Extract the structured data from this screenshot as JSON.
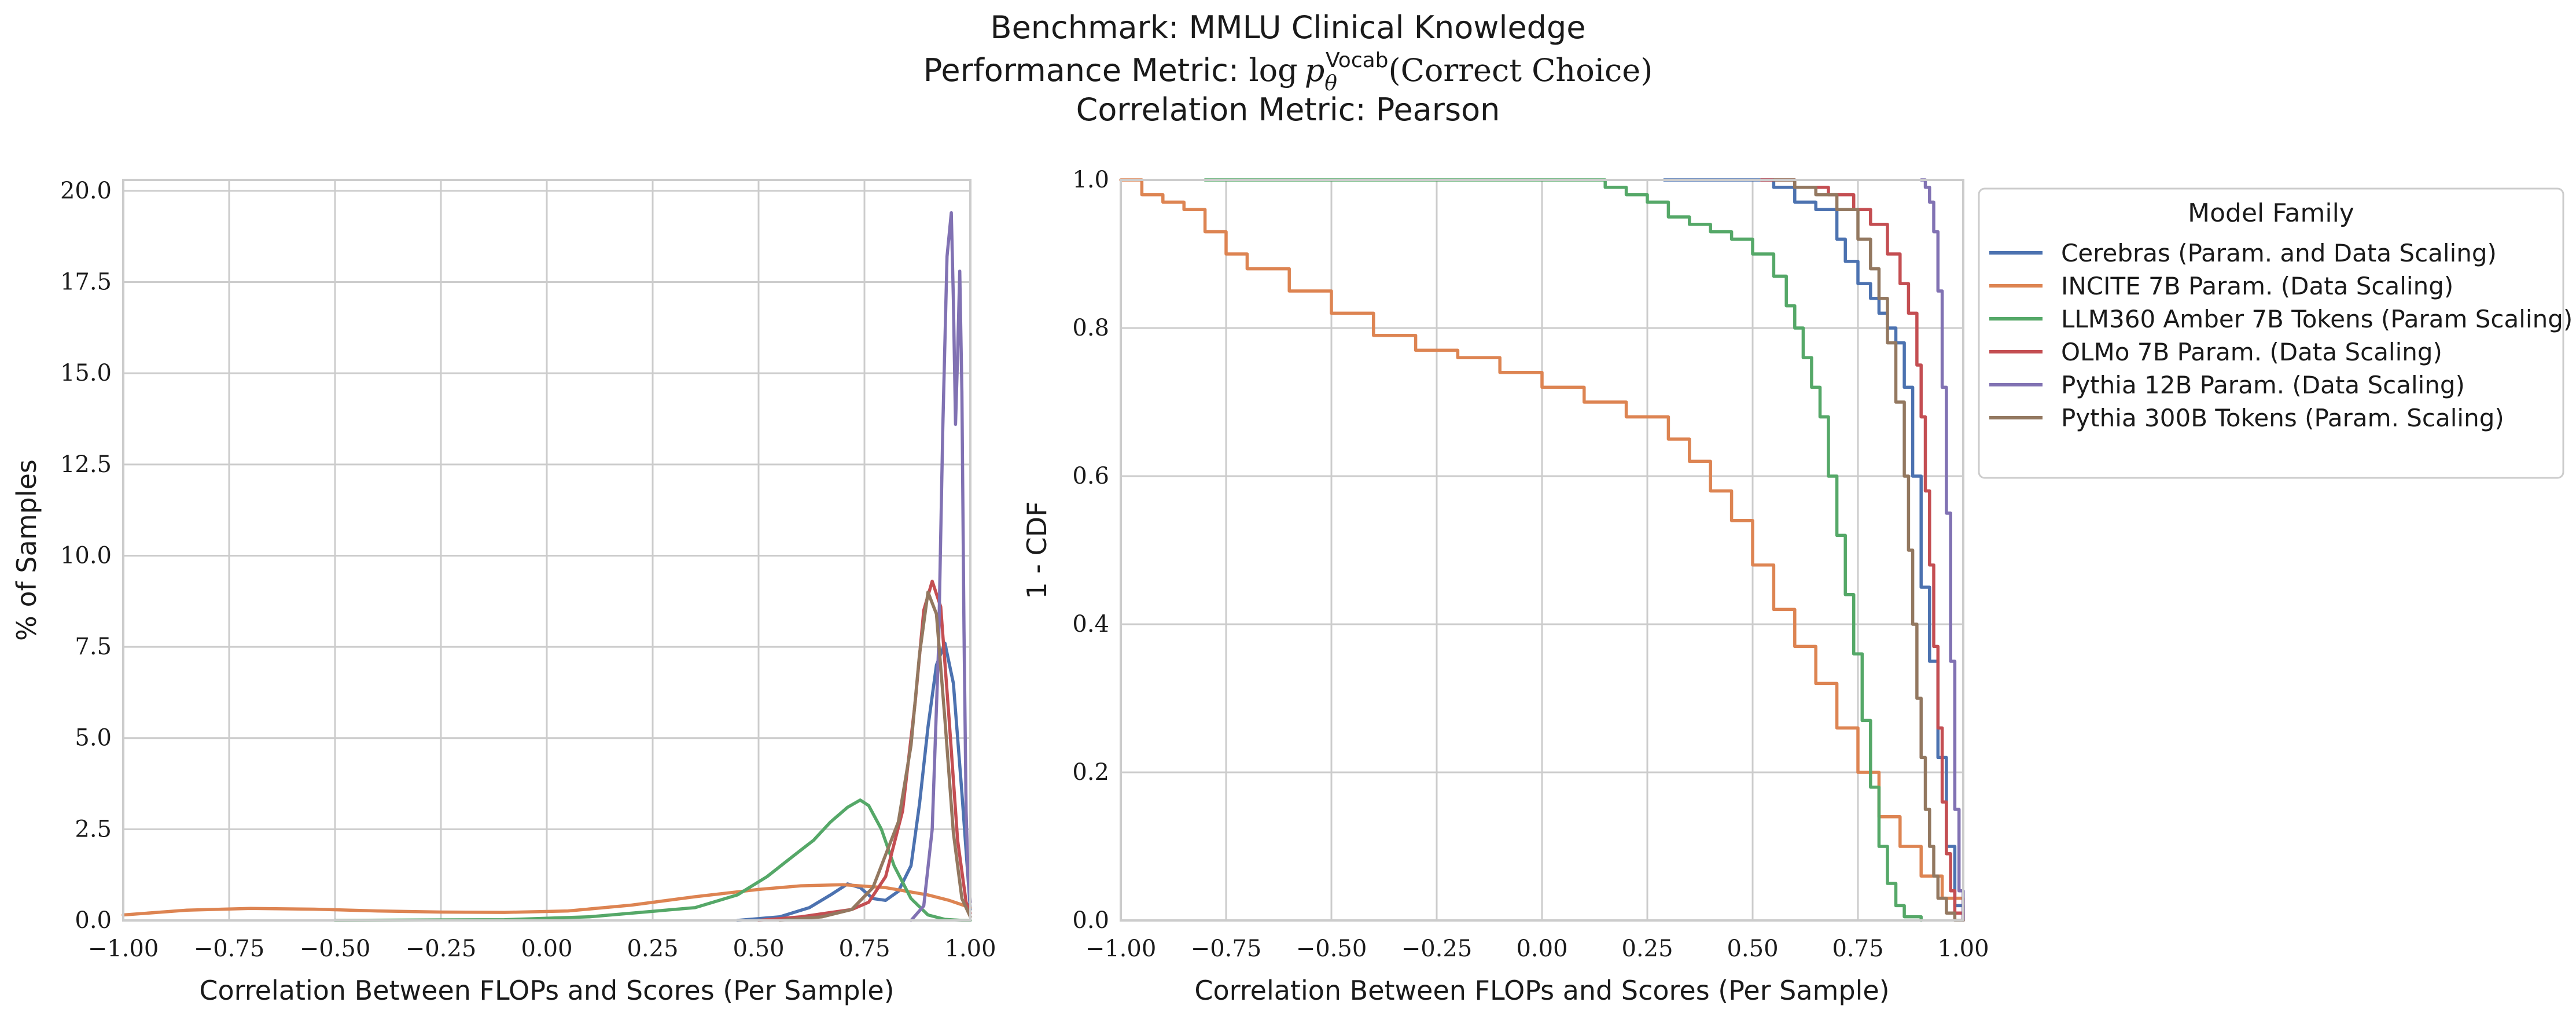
{
  "figure": {
    "title_line1": "Benchmark: MMLU Clinical Knowledge",
    "title_line2_prefix": "Performance Metric: ",
    "title_line2_log": "log",
    "title_line2_p": "p",
    "title_line2_sub": "θ",
    "title_line2_sup": "Vocab",
    "title_line2_suffix": "(Correct Choice)",
    "title_line3": "Correlation Metric: Pearson"
  },
  "legend": {
    "title": "Model Family"
  },
  "colors": {
    "Cerebras": "#4c72b0",
    "INCITE": "#dd8452",
    "LLM360": "#55a868",
    "OLMo": "#c44e52",
    "Pythia12B": "#8172b3",
    "Pythia300B": "#937860"
  },
  "chart_data": [
    {
      "type": "line",
      "name": "kde",
      "xlabel": "Correlation Between FLOPs and Scores (Per Sample)",
      "ylabel": "% of Samples",
      "xlim": [
        -1.0,
        1.0
      ],
      "ylim": [
        0.0,
        20.3
      ],
      "xticks": [
        -1.0,
        -0.75,
        -0.5,
        -0.25,
        0.0,
        0.25,
        0.5,
        0.75,
        1.0
      ],
      "xtick_labels": [
        "−1.00",
        "−0.75",
        "−0.50",
        "−0.25",
        "0.00",
        "0.25",
        "0.50",
        "0.75",
        "1.00"
      ],
      "yticks": [
        0.0,
        2.5,
        5.0,
        7.5,
        10.0,
        12.5,
        15.0,
        17.5,
        20.0
      ],
      "ytick_labels": [
        "0.0",
        "2.5",
        "5.0",
        "7.5",
        "10.0",
        "12.5",
        "15.0",
        "17.5",
        "20.0"
      ],
      "grid": true,
      "series": [
        {
          "name": "Cerebras (Param. and Data Scaling)",
          "color_key": "Cerebras",
          "x": [
            0.45,
            0.55,
            0.62,
            0.67,
            0.71,
            0.74,
            0.77,
            0.8,
            0.83,
            0.86,
            0.88,
            0.9,
            0.92,
            0.94,
            0.96,
            0.98,
            1.0
          ],
          "y": [
            0.0,
            0.1,
            0.35,
            0.7,
            1.0,
            0.9,
            0.6,
            0.55,
            0.8,
            1.5,
            3.2,
            5.3,
            7.0,
            7.6,
            6.5,
            3.5,
            0.3
          ]
        },
        {
          "name": "INCITE 7B Param. (Data Scaling)",
          "color_key": "INCITE",
          "x": [
            -1.0,
            -0.85,
            -0.7,
            -0.55,
            -0.4,
            -0.25,
            -0.1,
            0.05,
            0.2,
            0.35,
            0.5,
            0.6,
            0.7,
            0.8,
            0.9,
            0.95,
            1.0
          ],
          "y": [
            0.15,
            0.28,
            0.33,
            0.31,
            0.26,
            0.23,
            0.22,
            0.26,
            0.42,
            0.65,
            0.85,
            0.95,
            0.98,
            0.9,
            0.7,
            0.55,
            0.35
          ]
        },
        {
          "name": "LLM360 Amber 7B Tokens (Param Scaling)",
          "color_key": "LLM360",
          "x": [
            -0.5,
            -0.1,
            0.1,
            0.25,
            0.35,
            0.45,
            0.52,
            0.58,
            0.63,
            0.67,
            0.71,
            0.74,
            0.76,
            0.79,
            0.82,
            0.86,
            0.9,
            0.94,
            0.98,
            1.0
          ],
          "y": [
            0.0,
            0.02,
            0.1,
            0.25,
            0.35,
            0.7,
            1.2,
            1.75,
            2.2,
            2.7,
            3.1,
            3.3,
            3.15,
            2.5,
            1.5,
            0.6,
            0.15,
            0.03,
            0.0,
            0.0
          ]
        },
        {
          "name": "OLMo 7B Param. (Data Scaling)",
          "color_key": "OLMo",
          "x": [
            0.5,
            0.6,
            0.66,
            0.72,
            0.76,
            0.8,
            0.84,
            0.87,
            0.89,
            0.91,
            0.93,
            0.95,
            0.97,
            0.99,
            1.0
          ],
          "y": [
            0.0,
            0.1,
            0.2,
            0.3,
            0.5,
            1.2,
            3.0,
            6.0,
            8.5,
            9.3,
            8.6,
            5.5,
            2.2,
            0.5,
            0.2
          ]
        },
        {
          "name": "Pythia 12B Param. (Data Scaling)",
          "color_key": "Pythia12B",
          "x": [
            0.86,
            0.89,
            0.91,
            0.925,
            0.935,
            0.945,
            0.955,
            0.96,
            0.965,
            0.97,
            0.975,
            0.98,
            0.985,
            0.99,
            0.995,
            1.0
          ],
          "y": [
            0.0,
            0.4,
            2.5,
            7.5,
            13.5,
            18.2,
            19.4,
            17.0,
            13.6,
            15.5,
            17.8,
            14.5,
            8.0,
            3.0,
            1.2,
            0.5
          ]
        },
        {
          "name": "Pythia 300B Tokens (Param. Scaling)",
          "color_key": "Pythia300B",
          "x": [
            0.55,
            0.65,
            0.72,
            0.77,
            0.8,
            0.83,
            0.86,
            0.88,
            0.9,
            0.92,
            0.94,
            0.96,
            0.98,
            1.0
          ],
          "y": [
            0.0,
            0.1,
            0.3,
            0.9,
            1.8,
            2.7,
            4.8,
            7.3,
            9.0,
            8.4,
            5.5,
            2.4,
            0.6,
            0.1
          ]
        }
      ]
    },
    {
      "type": "line",
      "name": "survival",
      "xlabel": "Correlation Between FLOPs and Scores (Per Sample)",
      "ylabel": "1 - CDF",
      "xlim": [
        -1.0,
        1.0
      ],
      "ylim": [
        0.0,
        1.0
      ],
      "xticks": [
        -1.0,
        -0.75,
        -0.5,
        -0.25,
        0.0,
        0.25,
        0.5,
        0.75,
        1.0
      ],
      "xtick_labels": [
        "−1.00",
        "−0.75",
        "−0.50",
        "−0.25",
        "0.00",
        "0.25",
        "0.50",
        "0.75",
        "1.00"
      ],
      "yticks": [
        0.0,
        0.2,
        0.4,
        0.6,
        0.8,
        1.0
      ],
      "ytick_labels": [
        "0.0",
        "0.2",
        "0.4",
        "0.6",
        "0.8",
        "1.0"
      ],
      "grid": true,
      "legend_placement": "outside right, top",
      "series": [
        {
          "name": "Cerebras (Param. and Data Scaling)",
          "color_key": "Cerebras",
          "x": [
            0.29,
            0.5,
            0.55,
            0.6,
            0.65,
            0.7,
            0.72,
            0.75,
            0.78,
            0.8,
            0.82,
            0.84,
            0.86,
            0.88,
            0.9,
            0.92,
            0.94,
            0.96,
            0.98,
            1.0
          ],
          "y": [
            1.0,
            1.0,
            0.99,
            0.97,
            0.96,
            0.92,
            0.89,
            0.86,
            0.84,
            0.82,
            0.8,
            0.78,
            0.72,
            0.6,
            0.45,
            0.35,
            0.22,
            0.1,
            0.02,
            0.0
          ]
        },
        {
          "name": "INCITE 7B Param. (Data Scaling)",
          "color_key": "INCITE",
          "x": [
            -1.0,
            -0.95,
            -0.9,
            -0.85,
            -0.8,
            -0.75,
            -0.7,
            -0.6,
            -0.5,
            -0.4,
            -0.3,
            -0.2,
            -0.1,
            0.0,
            0.1,
            0.2,
            0.3,
            0.35,
            0.4,
            0.45,
            0.5,
            0.55,
            0.6,
            0.65,
            0.7,
            0.75,
            0.8,
            0.85,
            0.9,
            0.95,
            1.0
          ],
          "y": [
            1.0,
            0.98,
            0.97,
            0.96,
            0.93,
            0.9,
            0.88,
            0.85,
            0.82,
            0.79,
            0.77,
            0.76,
            0.74,
            0.72,
            0.7,
            0.68,
            0.65,
            0.62,
            0.58,
            0.54,
            0.48,
            0.42,
            0.37,
            0.32,
            0.26,
            0.2,
            0.14,
            0.1,
            0.06,
            0.03,
            0.0
          ]
        },
        {
          "name": "LLM360 Amber 7B Tokens (Param Scaling)",
          "color_key": "LLM360",
          "x": [
            -0.8,
            0.1,
            0.15,
            0.2,
            0.25,
            0.3,
            0.35,
            0.4,
            0.45,
            0.5,
            0.55,
            0.58,
            0.6,
            0.62,
            0.64,
            0.66,
            0.68,
            0.7,
            0.72,
            0.74,
            0.76,
            0.78,
            0.8,
            0.82,
            0.84,
            0.86,
            0.9
          ],
          "y": [
            1.0,
            1.0,
            0.99,
            0.98,
            0.97,
            0.95,
            0.94,
            0.93,
            0.92,
            0.9,
            0.87,
            0.83,
            0.8,
            0.76,
            0.72,
            0.68,
            0.6,
            0.52,
            0.44,
            0.36,
            0.27,
            0.18,
            0.1,
            0.05,
            0.02,
            0.005,
            0.0
          ]
        },
        {
          "name": "OLMo 7B Param. (Data Scaling)",
          "color_key": "OLMo",
          "x": [
            0.52,
            0.6,
            0.68,
            0.74,
            0.78,
            0.82,
            0.85,
            0.87,
            0.89,
            0.9,
            0.91,
            0.92,
            0.93,
            0.94,
            0.95,
            0.96,
            0.97,
            0.98,
            1.0
          ],
          "y": [
            1.0,
            0.99,
            0.98,
            0.96,
            0.94,
            0.9,
            0.86,
            0.82,
            0.75,
            0.68,
            0.58,
            0.48,
            0.37,
            0.26,
            0.16,
            0.09,
            0.04,
            0.01,
            0.0
          ]
        },
        {
          "name": "Pythia 12B Param. (Data Scaling)",
          "color_key": "Pythia12B",
          "x": [
            0.9,
            0.91,
            0.92,
            0.93,
            0.94,
            0.95,
            0.96,
            0.97,
            0.98,
            0.99,
            1.0
          ],
          "y": [
            1.0,
            0.99,
            0.97,
            0.93,
            0.85,
            0.72,
            0.55,
            0.35,
            0.15,
            0.04,
            0.0
          ]
        },
        {
          "name": "Pythia 300B Tokens (Param. Scaling)",
          "color_key": "Pythia300B",
          "x": [
            0.55,
            0.6,
            0.65,
            0.7,
            0.75,
            0.78,
            0.8,
            0.82,
            0.84,
            0.86,
            0.87,
            0.88,
            0.89,
            0.9,
            0.91,
            0.92,
            0.93,
            0.94,
            0.96,
            0.98,
            1.0
          ],
          "y": [
            1.0,
            0.99,
            0.98,
            0.96,
            0.92,
            0.88,
            0.84,
            0.78,
            0.7,
            0.6,
            0.5,
            0.4,
            0.3,
            0.22,
            0.15,
            0.1,
            0.06,
            0.03,
            0.01,
            0.0,
            0.0
          ]
        }
      ]
    }
  ]
}
